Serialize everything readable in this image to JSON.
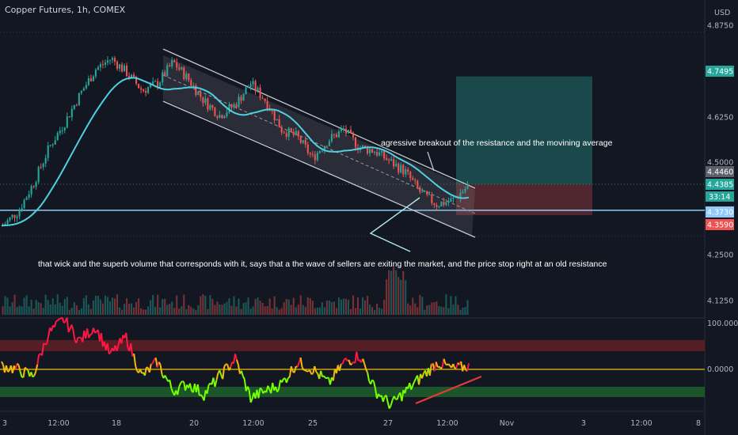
{
  "header": {
    "title": "Copper Futures, 1h, COMEX"
  },
  "annotations": {
    "breakout": "agressive breakout of the resistance and the movining average",
    "wick": "that wick and the superb volume that corresponds with it, says that a the wave of sellers are exiting the market, and the price stop right at an old resistance"
  },
  "colors": {
    "background": "#131722",
    "up": "#26a69a",
    "down": "#ef5350",
    "ma": "#4dd0e1",
    "channel": "#c7c9d0",
    "support": "#90caf9",
    "target_zone": "#1e5a5a",
    "stop_zone": "#5c2a30",
    "oscillator_up": "#76ff03",
    "oscillator_down": "#ff1744",
    "oscillator_mid": "#f0b90b"
  },
  "chart_data": [
    {
      "type": "candlestick",
      "currency": "USD",
      "y_ticks": [
        "4.8750",
        "4.7495",
        "4.6250",
        "4.5000",
        "4.4460",
        "4.4385",
        "4.3730",
        "4.3590",
        "4.2500",
        "4.1250"
      ],
      "ylim": [
        4.07,
        4.92
      ],
      "x_ticks": [
        "3",
        "12:00",
        "18",
        "20",
        "12:00",
        "25",
        "27",
        "12:00",
        "Nov",
        "3",
        "12:00",
        "8"
      ],
      "price_path": [
        4.33,
        4.37,
        4.45,
        4.55,
        4.62,
        4.7,
        4.77,
        4.8,
        4.76,
        4.71,
        4.73,
        4.79,
        4.74,
        4.68,
        4.64,
        4.67,
        4.73,
        4.68,
        4.6,
        4.58,
        4.52,
        4.57,
        4.6,
        4.55,
        4.54,
        4.51,
        4.48,
        4.42,
        4.39,
        4.4,
        4.44
      ],
      "price_labels": [
        {
          "value": "4.7495",
          "role": "target",
          "color": "#26a69a"
        },
        {
          "value": "4.4460",
          "role": "previous close",
          "color": "#5d606b"
        },
        {
          "value": "4.4385",
          "role": "last price",
          "color": "#26a69a"
        },
        {
          "value": "33:14",
          "role": "countdown",
          "color": "#26a69a"
        },
        {
          "value": "4.3730",
          "role": "support line",
          "color": "#90caf9"
        },
        {
          "value": "4.3590",
          "role": "stop",
          "color": "#ef5350"
        }
      ],
      "support_level": 4.373,
      "position": {
        "entry": 4.446,
        "target": 4.7495,
        "stop": 4.359
      }
    },
    {
      "type": "line",
      "y_ticks": [
        "100.0000",
        "0.0000"
      ],
      "ylim": [
        -100,
        100
      ],
      "overbought_band": [
        40,
        55
      ],
      "oversold_band": [
        -40,
        -55
      ],
      "path": [
        5,
        0,
        -10,
        50,
        70,
        40,
        60,
        20,
        45,
        -10,
        10,
        -30,
        -20,
        -35,
        -10,
        15,
        -40,
        -30,
        -20,
        10,
        0,
        -20,
        10,
        20,
        -30,
        -50,
        -30,
        -10,
        10,
        0,
        5
      ]
    }
  ]
}
